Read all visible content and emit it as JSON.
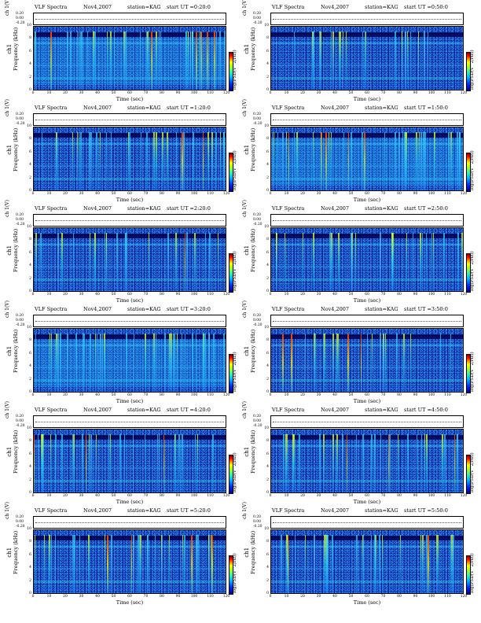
{
  "chart_data": [
    {
      "type": "heatmap",
      "program": "VLF Spectra",
      "date": "Nov4,2007",
      "station": "station=KAG",
      "start_ut": "start  UT =0:20:0",
      "ch_label": "ch 1(V)",
      "ch_ticks": [
        "0.20",
        "0.00",
        "-0.20"
      ],
      "channel": "ch1",
      "ylabel": "Frequency (kHz)",
      "yticks": [
        "0",
        "2",
        "4",
        "6",
        "8",
        "10"
      ],
      "xlabel": "Time (sec)",
      "xticks": [
        "0",
        "10",
        "20",
        "30",
        "40",
        "50",
        "60",
        "70",
        "80",
        "90",
        "100",
        "110",
        "120"
      ],
      "cbar_label": "log(PSD(V^2/Hz))",
      "xlim": [
        0,
        120
      ],
      "ylim": [
        0,
        10
      ],
      "intensity": "high"
    },
    {
      "type": "heatmap",
      "program": "VLF Spectra",
      "date": "Nov4,2007",
      "station": "station=KAG",
      "start_ut": "start  UT =0:50:0",
      "ch_label": "ch 1(V)",
      "ch_ticks": [
        "0.20",
        "0.00",
        "-0.20"
      ],
      "channel": "ch1",
      "ylabel": "Frequency (kHz)",
      "yticks": [
        "0",
        "2",
        "4",
        "6",
        "8",
        "10"
      ],
      "xlabel": "Time (sec)",
      "xticks": [
        "0",
        "10",
        "20",
        "30",
        "40",
        "50",
        "60",
        "70",
        "80",
        "90",
        "100",
        "110",
        "120"
      ],
      "cbar_label": "log(PSD(V^2/Hz))",
      "xlim": [
        0,
        120
      ],
      "ylim": [
        0,
        10
      ],
      "intensity": "low"
    },
    {
      "type": "heatmap",
      "program": "VLF Spectra",
      "date": "Nov4,2007",
      "station": "station=KAG",
      "start_ut": "start  UT =1:20:0",
      "ch_label": "ch 1(V)",
      "ch_ticks": [
        "0.20",
        "0.00",
        "-0.20"
      ],
      "channel": "ch1",
      "ylabel": "Frequency (kHz)",
      "yticks": [
        "0",
        "2",
        "4",
        "6",
        "8",
        "10"
      ],
      "xlabel": "Time (sec)",
      "xticks": [
        "0",
        "10",
        "20",
        "30",
        "40",
        "50",
        "60",
        "70",
        "80",
        "90",
        "100",
        "110",
        "120"
      ],
      "cbar_label": "log(PSD(V^2/Hz))",
      "xlim": [
        0,
        120
      ],
      "ylim": [
        0,
        10
      ],
      "intensity": "medium"
    },
    {
      "type": "heatmap",
      "program": "VLF Spectra",
      "date": "Nov4,2007",
      "station": "station=KAG",
      "start_ut": "start  UT =1:50:0",
      "ch_label": "ch 1(V)",
      "ch_ticks": [
        "0.20",
        "0.00",
        "-0.20"
      ],
      "channel": "ch1",
      "ylabel": "Frequency (kHz)",
      "yticks": [
        "0",
        "2",
        "4",
        "6",
        "8",
        "10"
      ],
      "xlabel": "Time (sec)",
      "xticks": [
        "0",
        "10",
        "20",
        "30",
        "40",
        "50",
        "60",
        "70",
        "80",
        "90",
        "100",
        "110",
        "120"
      ],
      "cbar_label": "log(PSD(V^2/Hz))",
      "xlim": [
        0,
        120
      ],
      "ylim": [
        0,
        10
      ],
      "intensity": "high"
    },
    {
      "type": "heatmap",
      "program": "VLF Spectra",
      "date": "Nov4,2007",
      "station": "station=KAG",
      "start_ut": "start  UT =2:20:0",
      "ch_label": "ch 1(V)",
      "ch_ticks": [
        "0.20",
        "0.00",
        "-0.20"
      ],
      "channel": "ch1",
      "ylabel": "Frequency (kHz)",
      "yticks": [
        "0",
        "2",
        "4",
        "6",
        "8",
        "10"
      ],
      "xlabel": "Time (sec)",
      "xticks": [
        "0",
        "10",
        "20",
        "30",
        "40",
        "50",
        "60",
        "70",
        "80",
        "90",
        "100",
        "110",
        "120"
      ],
      "cbar_label": "log(PSD(V^2/Hz))",
      "xlim": [
        0,
        120
      ],
      "ylim": [
        0,
        10
      ],
      "intensity": "low"
    },
    {
      "type": "heatmap",
      "program": "VLF Spectra",
      "date": "Nov4,2007",
      "station": "station=KAG",
      "start_ut": "start  UT =2:50:0",
      "ch_label": "ch 1(V)",
      "ch_ticks": [
        "0.20",
        "0.00",
        "-0.20"
      ],
      "channel": "ch1",
      "ylabel": "Frequency (kHz)",
      "yticks": [
        "0",
        "2",
        "4",
        "6",
        "8",
        "10"
      ],
      "xlabel": "Time (sec)",
      "xticks": [
        "0",
        "10",
        "20",
        "30",
        "40",
        "50",
        "60",
        "70",
        "80",
        "90",
        "100",
        "110",
        "120"
      ],
      "cbar_label": "log(PSD(V^2/Hz))",
      "xlim": [
        0,
        120
      ],
      "ylim": [
        0,
        10
      ],
      "intensity": "low"
    },
    {
      "type": "heatmap",
      "program": "VLF Spectra",
      "date": "Nov4,2007",
      "station": "station=KAG",
      "start_ut": "start  UT =3:20:0",
      "ch_label": "ch 1(V)",
      "ch_ticks": [
        "0.20",
        "0.00",
        "-0.20"
      ],
      "channel": "ch1",
      "ylabel": "Frequency (kHz)",
      "yticks": [
        "0",
        "2",
        "4",
        "6",
        "8",
        "10"
      ],
      "xlabel": "Time (sec)",
      "xticks": [
        "0",
        "10",
        "20",
        "30",
        "40",
        "50",
        "60",
        "70",
        "80",
        "90",
        "100",
        "110",
        "120"
      ],
      "cbar_label": "log(PSD(V^2/Hz))",
      "xlim": [
        0,
        120
      ],
      "ylim": [
        0,
        10
      ],
      "intensity": "high"
    },
    {
      "type": "heatmap",
      "program": "VLF Spectra",
      "date": "Nov4,2007",
      "station": "station=KAG",
      "start_ut": "start  UT =3:50:0",
      "ch_label": "ch 1(V)",
      "ch_ticks": [
        "0.20",
        "0.00",
        "-0.20"
      ],
      "channel": "ch1",
      "ylabel": "Frequency (kHz)",
      "yticks": [
        "0",
        "2",
        "4",
        "6",
        "8",
        "10"
      ],
      "xlabel": "Time (sec)",
      "xticks": [
        "0",
        "10",
        "20",
        "30",
        "40",
        "50",
        "60",
        "70",
        "80",
        "90",
        "100",
        "110",
        "120"
      ],
      "cbar_label": "log(PSD(V^2/Hz))",
      "xlim": [
        0,
        120
      ],
      "ylim": [
        0,
        10
      ],
      "intensity": "low"
    },
    {
      "type": "heatmap",
      "program": "VLF Spectra",
      "date": "Nov4,2007",
      "station": "station=KAG",
      "start_ut": "start  UT =4:20:0",
      "ch_label": "ch 1(V)",
      "ch_ticks": [
        "0.20",
        "0.00",
        "-0.20"
      ],
      "channel": "ch1",
      "ylabel": "Frequency (kHz)",
      "yticks": [
        "0",
        "2",
        "4",
        "6",
        "8",
        "10"
      ],
      "xlabel": "Time (sec)",
      "xticks": [
        "0",
        "10",
        "20",
        "30",
        "40",
        "50",
        "60",
        "70",
        "80",
        "90",
        "100",
        "110",
        "120"
      ],
      "cbar_label": "log(PSD(V^2/Hz))",
      "xlim": [
        0,
        120
      ],
      "ylim": [
        0,
        10
      ],
      "intensity": "medium"
    },
    {
      "type": "heatmap",
      "program": "VLF Spectra",
      "date": "Nov4,2007",
      "station": "station=KAG",
      "start_ut": "start  UT =4:50:0",
      "ch_label": "ch 1(V)",
      "ch_ticks": [
        "0.20",
        "0.00",
        "-0.20"
      ],
      "channel": "ch1",
      "ylabel": "Frequency (kHz)",
      "yticks": [
        "0",
        "2",
        "4",
        "6",
        "8",
        "10"
      ],
      "xlabel": "Time (sec)",
      "xticks": [
        "0",
        "10",
        "20",
        "30",
        "40",
        "50",
        "60",
        "70",
        "80",
        "90",
        "100",
        "110",
        "120"
      ],
      "cbar_label": "log(PSD(V^2/Hz))",
      "xlim": [
        0,
        120
      ],
      "ylim": [
        0,
        10
      ],
      "intensity": "medium"
    },
    {
      "type": "heatmap",
      "program": "VLF Spectra",
      "date": "Nov4,2007",
      "station": "station=KAG",
      "start_ut": "start  UT =5:20:0",
      "ch_label": "ch 1(V)",
      "ch_ticks": [
        "0.20",
        "0.00",
        "-0.20"
      ],
      "channel": "ch1",
      "ylabel": "Frequency (kHz)",
      "yticks": [
        "0",
        "2",
        "4",
        "6",
        "8",
        "10"
      ],
      "xlabel": "Time (sec)",
      "xticks": [
        "0",
        "10",
        "20",
        "30",
        "40",
        "50",
        "60",
        "70",
        "80",
        "90",
        "100",
        "110",
        "120"
      ],
      "cbar_label": "log(PSD(V^2/Hz))",
      "xlim": [
        0,
        120
      ],
      "ylim": [
        0,
        10
      ],
      "intensity": "medium"
    },
    {
      "type": "heatmap",
      "program": "VLF Spectra",
      "date": "Nov4,2007",
      "station": "station=KAG",
      "start_ut": "start  UT =5:50:0",
      "ch_label": "ch 1(V)",
      "ch_ticks": [
        "0.20",
        "0.00",
        "-0.20"
      ],
      "channel": "ch1",
      "ylabel": "Frequency (kHz)",
      "yticks": [
        "0",
        "2",
        "4",
        "6",
        "8",
        "10"
      ],
      "xlabel": "Time (sec)",
      "xticks": [
        "0",
        "10",
        "20",
        "30",
        "40",
        "50",
        "60",
        "70",
        "80",
        "90",
        "100",
        "110",
        "120"
      ],
      "cbar_label": "log(PSD(V^2/Hz))",
      "xlim": [
        0,
        120
      ],
      "ylim": [
        0,
        10
      ],
      "intensity": "medium"
    }
  ]
}
